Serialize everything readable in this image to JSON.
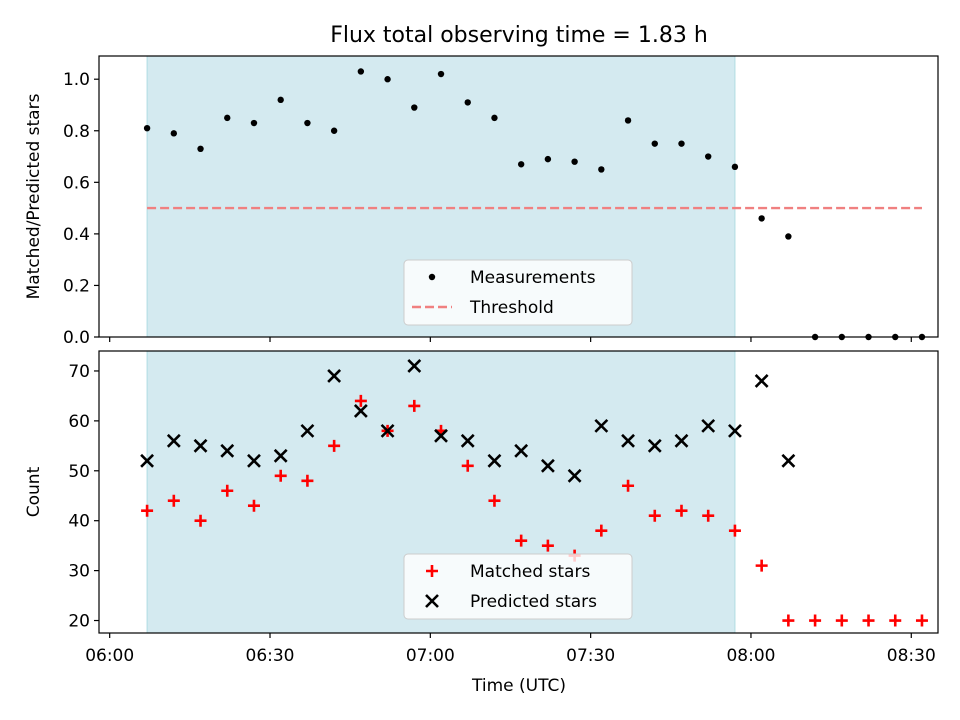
{
  "chart_data": {
    "title": "Flux total observing time = 1.83 h",
    "xlabel": "Time (UTC)",
    "x_ticks": [
      "06:00",
      "06:30",
      "07:00",
      "07:30",
      "08:00",
      "08:30"
    ],
    "x_tick_minutes": [
      360,
      390,
      420,
      450,
      480,
      510
    ],
    "xlim_minutes": [
      358,
      515
    ],
    "time": [
      "06:07",
      "06:12",
      "06:17",
      "06:22",
      "06:27",
      "06:32",
      "06:37",
      "06:42",
      "06:47",
      "06:52",
      "06:57",
      "07:02",
      "07:07",
      "07:12",
      "07:17",
      "07:22",
      "07:27",
      "07:32",
      "07:37",
      "07:42",
      "07:47",
      "07:52",
      "07:57",
      "08:02",
      "08:07",
      "08:12",
      "08:17",
      "08:22",
      "08:27",
      "08:32"
    ],
    "shaded_interval": [
      "06:07",
      "07:57"
    ],
    "panels": [
      {
        "type": "scatter",
        "ylabel": "Matched/Predicted stars",
        "ylim": [
          0,
          1.09
        ],
        "yticks": [
          0.0,
          0.2,
          0.4,
          0.6,
          0.8,
          1.0
        ],
        "ytick_labels": [
          "0.0",
          "0.2",
          "0.4",
          "0.6",
          "0.8",
          "1.0"
        ],
        "series": [
          {
            "name": "Measurements",
            "marker": "dot",
            "color": "#000000",
            "values": [
              0.81,
              0.79,
              0.73,
              0.85,
              0.83,
              0.92,
              0.83,
              0.8,
              1.03,
              1.0,
              0.89,
              1.02,
              0.91,
              0.85,
              0.67,
              0.69,
              0.68,
              0.65,
              0.84,
              0.75,
              0.75,
              0.7,
              0.66,
              0.46,
              0.39,
              0.0,
              0.0,
              0.0,
              0.0,
              0.0
            ]
          }
        ],
        "threshold": {
          "name": "Threshold",
          "value": 0.5,
          "x_range": [
            "06:07",
            "08:32"
          ],
          "color": "#f08080"
        },
        "legend": "lower center"
      },
      {
        "type": "scatter",
        "ylabel": "Count",
        "ylim": [
          17.5,
          74
        ],
        "yticks": [
          20,
          30,
          40,
          50,
          60,
          70
        ],
        "ytick_labels": [
          "20",
          "30",
          "40",
          "50",
          "60",
          "70"
        ],
        "series": [
          {
            "name": "Matched stars",
            "marker": "plus",
            "color": "#ff0000",
            "values": [
              42,
              44,
              40,
              46,
              43,
              49,
              48,
              55,
              64,
              58,
              63,
              58,
              51,
              44,
              36,
              35,
              33,
              38,
              47,
              41,
              42,
              41,
              38,
              31,
              20,
              20,
              20,
              20,
              20,
              20
            ]
          },
          {
            "name": "Predicted stars",
            "marker": "x",
            "color": "#000000",
            "values": [
              52,
              56,
              55,
              54,
              52,
              53,
              58,
              69,
              62,
              58,
              71,
              57,
              56,
              52,
              54,
              51,
              49,
              59,
              56,
              55,
              56,
              59,
              58,
              68,
              52,
              null,
              null,
              null,
              null,
              null
            ]
          }
        ],
        "legend": "lower center"
      }
    ],
    "colors": {
      "shade": "#d4eaf0",
      "shade_edge": "#b0dce3"
    }
  }
}
